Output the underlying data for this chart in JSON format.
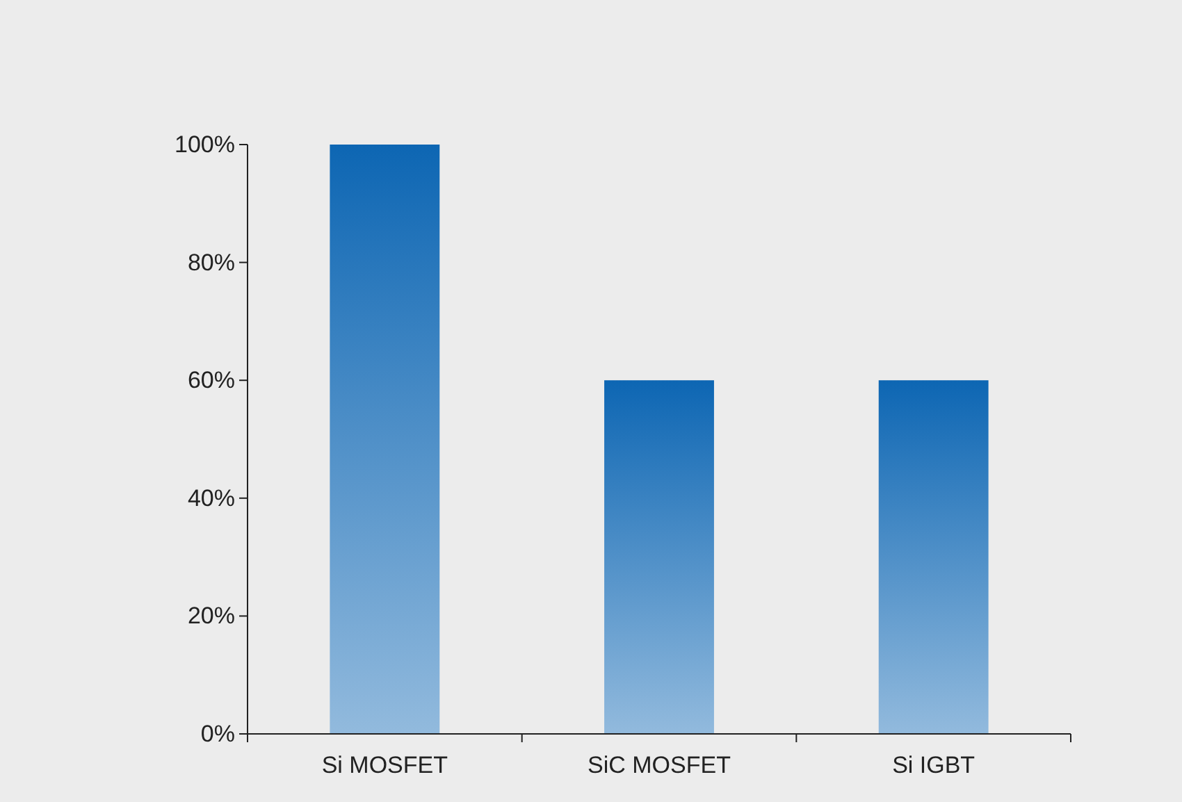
{
  "chart_data": {
    "type": "bar",
    "categories": [
      "Si MOSFET",
      "SiC MOSFET",
      "Si IGBT"
    ],
    "values": [
      100,
      60,
      60
    ],
    "color": "#0d66b3",
    "ylim": [
      0,
      100
    ],
    "yticks": [
      {
        "value": 0,
        "label": "0%"
      },
      {
        "value": 20,
        "label": "20%"
      },
      {
        "value": 40,
        "label": "40%"
      },
      {
        "value": 60,
        "label": "60%"
      },
      {
        "value": 80,
        "label": "80%"
      },
      {
        "value": 100,
        "label": "100%"
      }
    ],
    "grid": false
  }
}
